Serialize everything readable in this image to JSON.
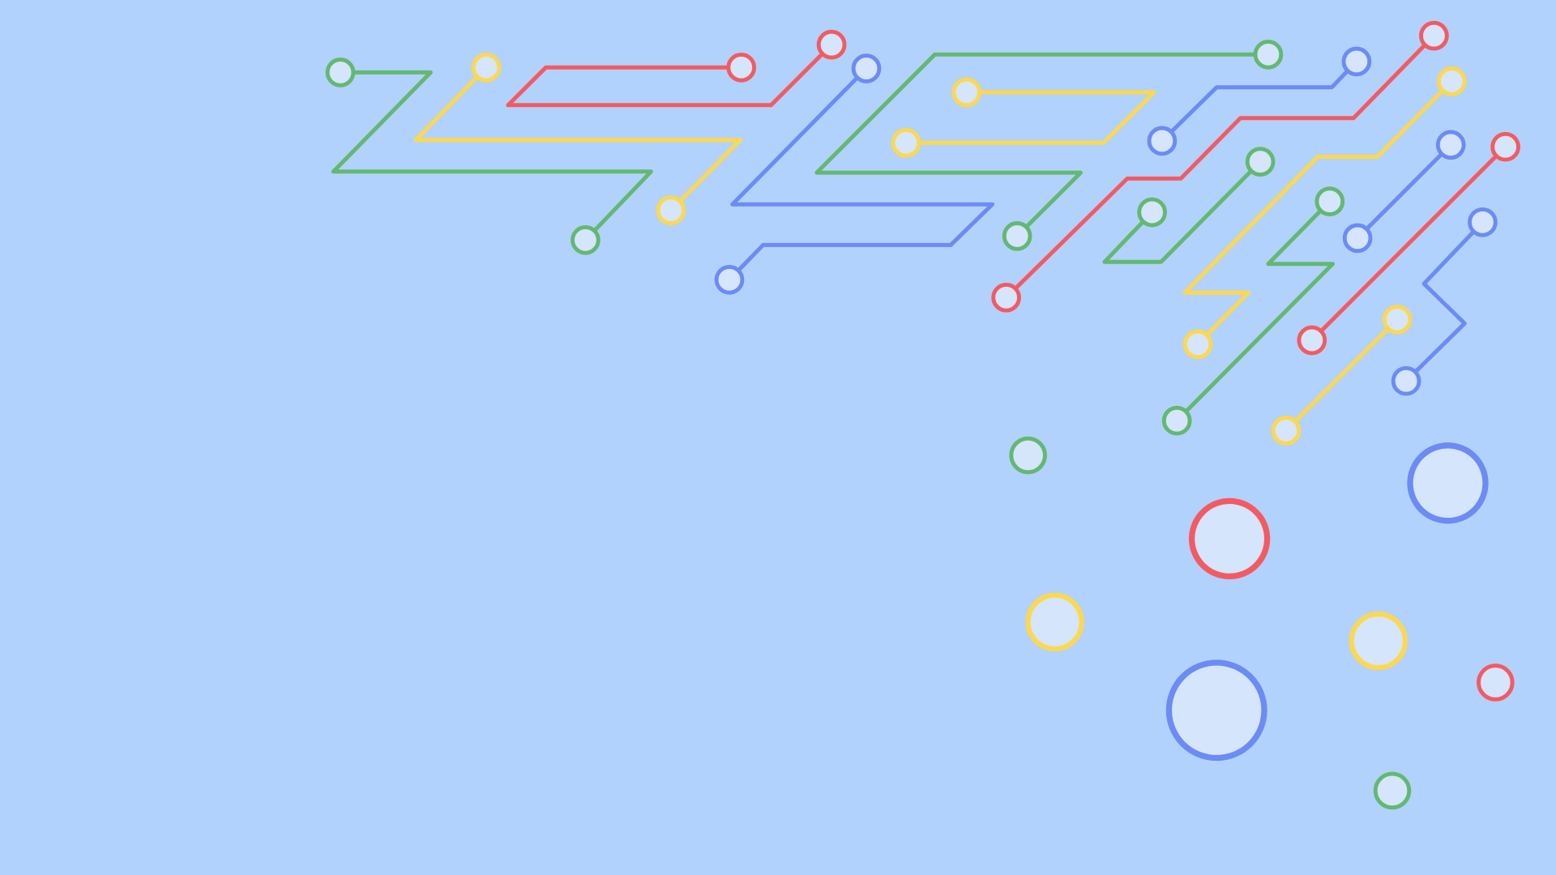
{
  "background_color": "#b1d2fc",
  "node_fill": "#d4e5fc",
  "palette": {
    "green": "#64b872",
    "yellow": "#fdd84f",
    "red": "#f25b62",
    "blue": "#6c8bf4"
  },
  "description_free": true
}
